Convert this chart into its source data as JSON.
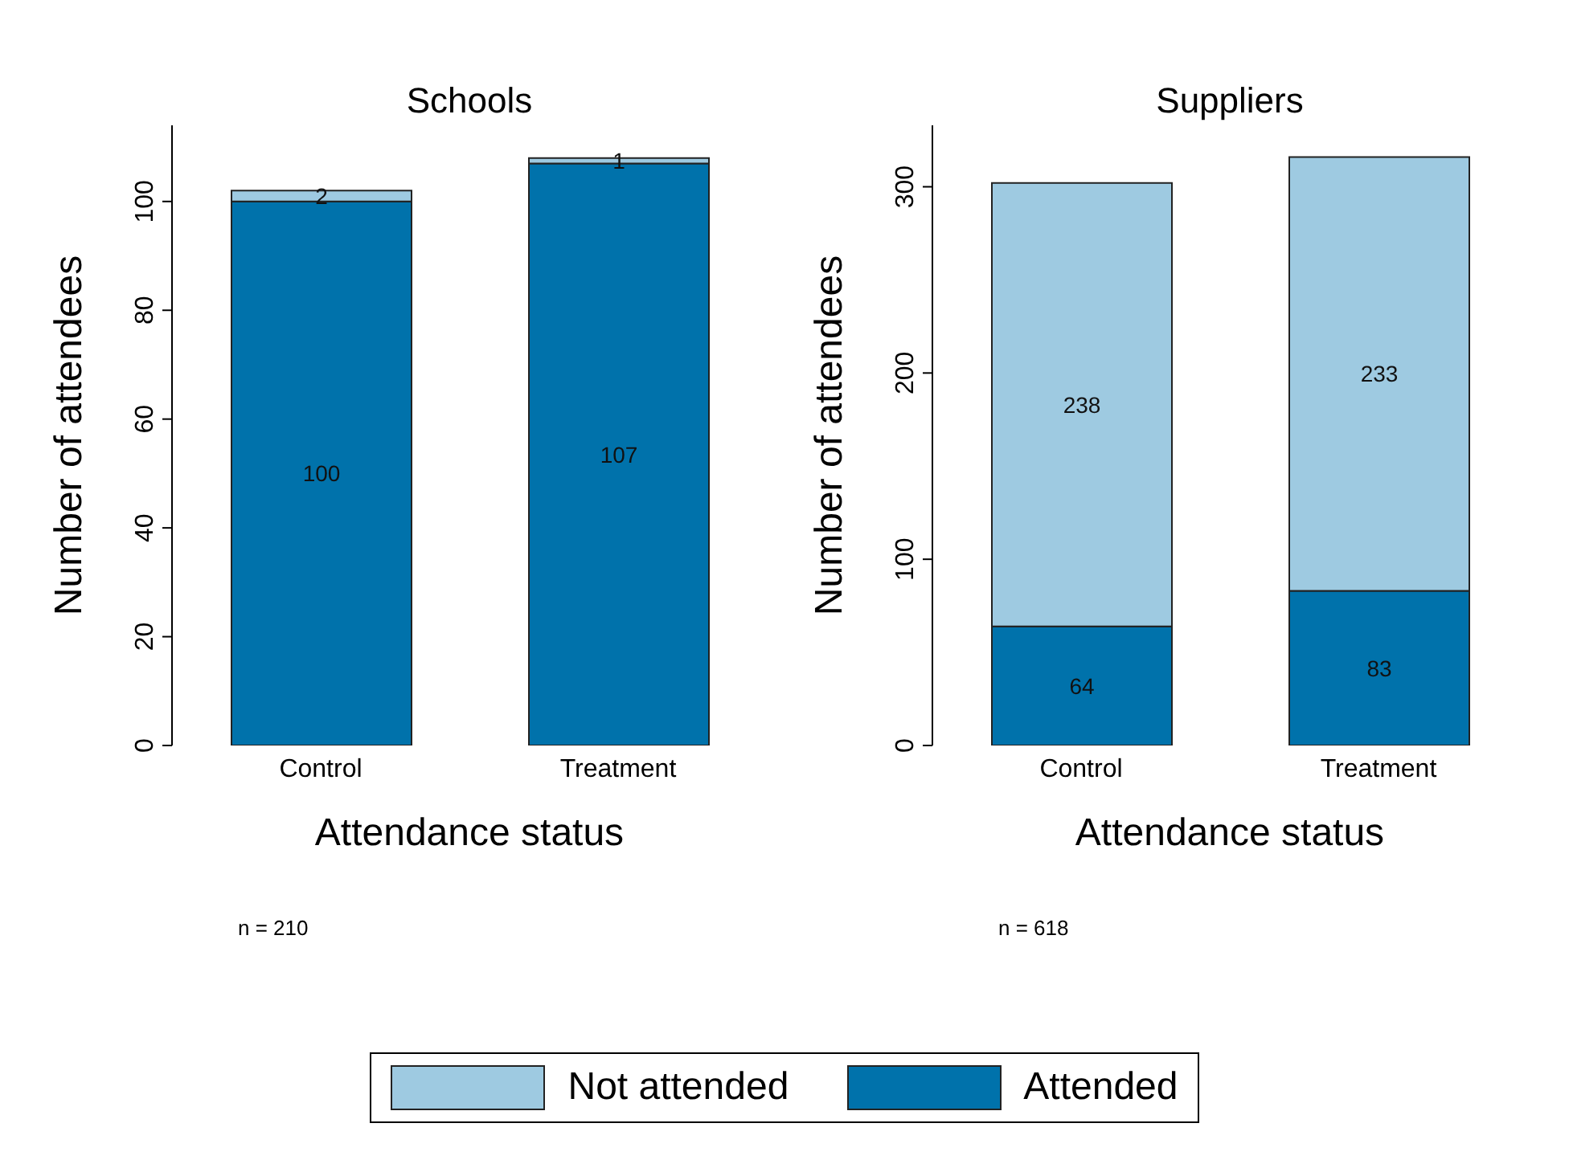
{
  "chart_data": [
    {
      "type": "bar",
      "title": "Schools",
      "xlabel": "Attendance status",
      "ylabel": "Number of attendees",
      "categories": [
        "Control",
        "Treatment"
      ],
      "stacked": true,
      "data_labels": true,
      "ylim": [
        0,
        114
      ],
      "yticks": [
        0,
        20,
        40,
        60,
        80,
        100
      ],
      "grid": false,
      "legend": "bottom",
      "annotations": [
        "n = 210"
      ],
      "series": [
        {
          "name": "Attended",
          "color": "#0072ab",
          "values": [
            100,
            107
          ]
        },
        {
          "name": "Not attended",
          "color": "#9ecae1",
          "values": [
            2,
            1
          ]
        }
      ]
    },
    {
      "type": "bar",
      "title": "Suppliers",
      "xlabel": "Attendance status",
      "ylabel": "Number of attendees",
      "categories": [
        "Control",
        "Treatment"
      ],
      "stacked": true,
      "data_labels": true,
      "ylim": [
        0,
        333
      ],
      "yticks": [
        0,
        100,
        200,
        300
      ],
      "grid": false,
      "legend": "bottom",
      "annotations": [
        "n = 618"
      ],
      "series": [
        {
          "name": "Attended",
          "color": "#0072ab",
          "values": [
            64,
            83
          ]
        },
        {
          "name": "Not attended",
          "color": "#9ecae1",
          "values": [
            238,
            233
          ]
        }
      ]
    }
  ]
}
